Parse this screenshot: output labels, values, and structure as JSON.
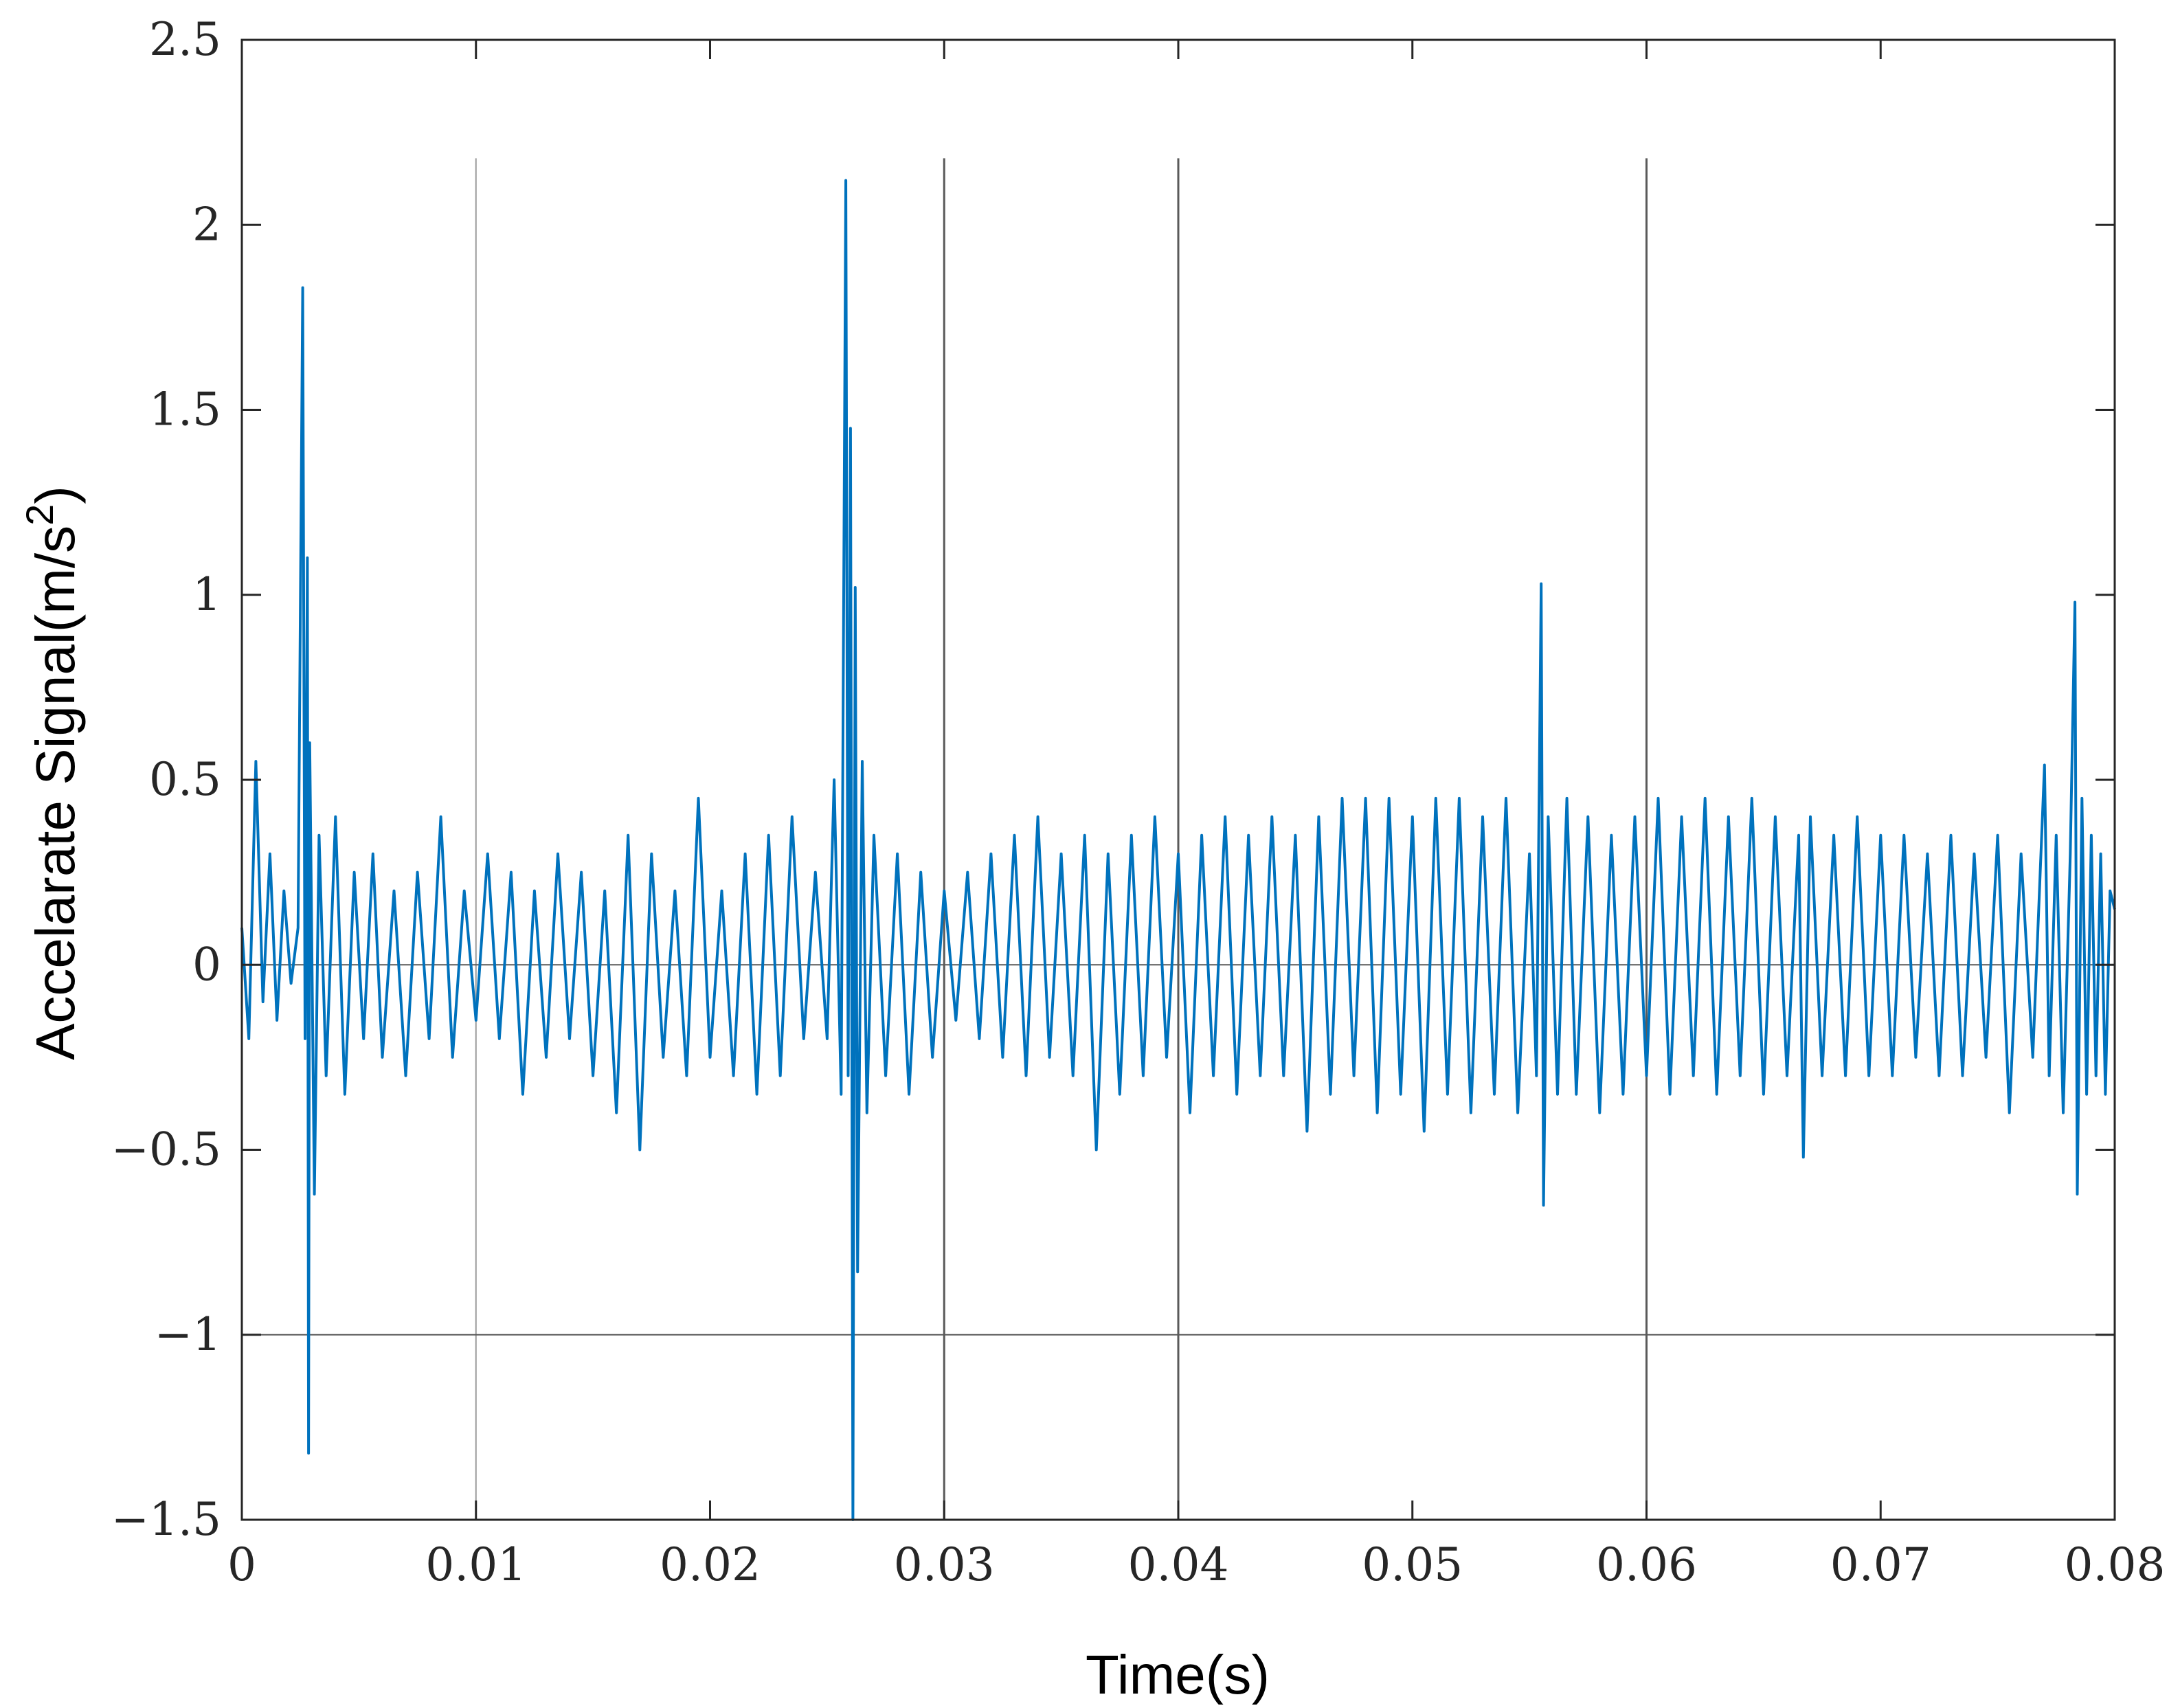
{
  "chart_data": {
    "type": "line",
    "title": "",
    "xlabel": "Time(s)",
    "ylabel": "Accelarate Signal(m/s",
    "ylabel_superscript": "2",
    "ylabel_suffix": ")",
    "xlim": [
      0,
      0.08
    ],
    "ylim": [
      -1.5,
      2.5
    ],
    "x_ticks": [
      0,
      0.01,
      0.02,
      0.03,
      0.04,
      0.05,
      0.06,
      0.07,
      0.08
    ],
    "x_tick_labels": [
      "0",
      "0.01",
      "0.02",
      "0.03",
      "0.04",
      "0.05",
      "0.06",
      "0.07",
      "0.08"
    ],
    "y_ticks": [
      2.5,
      2,
      1.5,
      1,
      0.5,
      0,
      -0.5,
      -1,
      -1.5
    ],
    "y_tick_labels": [
      "2.5",
      "2",
      "1.5",
      "1",
      "0.5",
      "0",
      "−0.5",
      "−1",
      "−1.5"
    ],
    "reference_lines": {
      "vertical_x": [
        0.01,
        0.03,
        0.04,
        0.06
      ],
      "vertical_top_y": 2.18,
      "horizontal_y": [
        0,
        -1
      ]
    },
    "series_color": "#0072BD",
    "grid": false,
    "series": [
      {
        "values_note": "",
        "points": [
          [
            0.0,
            0.1
          ],
          [
            0.0003,
            -0.2
          ],
          [
            0.0006,
            0.55
          ],
          [
            0.0009,
            -0.1
          ],
          [
            0.0012,
            0.3
          ],
          [
            0.0015,
            -0.15
          ],
          [
            0.0018,
            0.2
          ],
          [
            0.0021,
            -0.05
          ],
          [
            0.0024,
            0.1
          ],
          [
            0.0026,
            1.83
          ],
          [
            0.0027,
            -0.2
          ],
          [
            0.0028,
            1.1
          ],
          [
            0.00285,
            -1.32
          ],
          [
            0.0029,
            0.6
          ],
          [
            0.0031,
            -0.62
          ],
          [
            0.0033,
            0.35
          ],
          [
            0.0036,
            -0.3
          ],
          [
            0.004,
            0.4
          ],
          [
            0.0044,
            -0.35
          ],
          [
            0.0048,
            0.25
          ],
          [
            0.0052,
            -0.2
          ],
          [
            0.0056,
            0.3
          ],
          [
            0.006,
            -0.25
          ],
          [
            0.0065,
            0.2
          ],
          [
            0.007,
            -0.3
          ],
          [
            0.0075,
            0.25
          ],
          [
            0.008,
            -0.2
          ],
          [
            0.0085,
            0.4
          ],
          [
            0.009,
            -0.25
          ],
          [
            0.0095,
            0.2
          ],
          [
            0.01,
            -0.15
          ],
          [
            0.0105,
            0.3
          ],
          [
            0.011,
            -0.2
          ],
          [
            0.0115,
            0.25
          ],
          [
            0.012,
            -0.35
          ],
          [
            0.0125,
            0.2
          ],
          [
            0.013,
            -0.25
          ],
          [
            0.0135,
            0.3
          ],
          [
            0.014,
            -0.2
          ],
          [
            0.0145,
            0.25
          ],
          [
            0.015,
            -0.3
          ],
          [
            0.0155,
            0.2
          ],
          [
            0.016,
            -0.4
          ],
          [
            0.0165,
            0.35
          ],
          [
            0.017,
            -0.5
          ],
          [
            0.0175,
            0.3
          ],
          [
            0.018,
            -0.25
          ],
          [
            0.0185,
            0.2
          ],
          [
            0.019,
            -0.3
          ],
          [
            0.0195,
            0.45
          ],
          [
            0.02,
            -0.25
          ],
          [
            0.0205,
            0.2
          ],
          [
            0.021,
            -0.3
          ],
          [
            0.0215,
            0.3
          ],
          [
            0.022,
            -0.35
          ],
          [
            0.0225,
            0.35
          ],
          [
            0.023,
            -0.3
          ],
          [
            0.0235,
            0.4
          ],
          [
            0.024,
            -0.2
          ],
          [
            0.0245,
            0.25
          ],
          [
            0.025,
            -0.2
          ],
          [
            0.0253,
            0.5
          ],
          [
            0.0256,
            -0.35
          ],
          [
            0.0258,
            2.12
          ],
          [
            0.0259,
            -0.3
          ],
          [
            0.026,
            1.45
          ],
          [
            0.0261,
            -1.5
          ],
          [
            0.0262,
            1.02
          ],
          [
            0.0263,
            -0.83
          ],
          [
            0.0265,
            0.55
          ],
          [
            0.0267,
            -0.4
          ],
          [
            0.027,
            0.35
          ],
          [
            0.0275,
            -0.3
          ],
          [
            0.028,
            0.3
          ],
          [
            0.0285,
            -0.35
          ],
          [
            0.029,
            0.25
          ],
          [
            0.0295,
            -0.25
          ],
          [
            0.03,
            0.2
          ],
          [
            0.0305,
            -0.15
          ],
          [
            0.031,
            0.25
          ],
          [
            0.0315,
            -0.2
          ],
          [
            0.032,
            0.3
          ],
          [
            0.0325,
            -0.25
          ],
          [
            0.033,
            0.35
          ],
          [
            0.0335,
            -0.3
          ],
          [
            0.034,
            0.4
          ],
          [
            0.0345,
            -0.25
          ],
          [
            0.035,
            0.3
          ],
          [
            0.0355,
            -0.3
          ],
          [
            0.036,
            0.35
          ],
          [
            0.0365,
            -0.5
          ],
          [
            0.037,
            0.3
          ],
          [
            0.0375,
            -0.35
          ],
          [
            0.038,
            0.35
          ],
          [
            0.0385,
            -0.3
          ],
          [
            0.039,
            0.4
          ],
          [
            0.0395,
            -0.25
          ],
          [
            0.04,
            0.3
          ],
          [
            0.0405,
            -0.4
          ],
          [
            0.041,
            0.35
          ],
          [
            0.0415,
            -0.3
          ],
          [
            0.042,
            0.4
          ],
          [
            0.0425,
            -0.35
          ],
          [
            0.043,
            0.35
          ],
          [
            0.0435,
            -0.3
          ],
          [
            0.044,
            0.4
          ],
          [
            0.0445,
            -0.3
          ],
          [
            0.045,
            0.35
          ],
          [
            0.0455,
            -0.45
          ],
          [
            0.046,
            0.4
          ],
          [
            0.0465,
            -0.35
          ],
          [
            0.047,
            0.45
          ],
          [
            0.0475,
            -0.3
          ],
          [
            0.048,
            0.45
          ],
          [
            0.0485,
            -0.4
          ],
          [
            0.049,
            0.45
          ],
          [
            0.0495,
            -0.35
          ],
          [
            0.05,
            0.4
          ],
          [
            0.0505,
            -0.45
          ],
          [
            0.051,
            0.45
          ],
          [
            0.0515,
            -0.35
          ],
          [
            0.052,
            0.45
          ],
          [
            0.0525,
            -0.4
          ],
          [
            0.053,
            0.4
          ],
          [
            0.0535,
            -0.35
          ],
          [
            0.054,
            0.45
          ],
          [
            0.0545,
            -0.4
          ],
          [
            0.055,
            0.3
          ],
          [
            0.0553,
            -0.3
          ],
          [
            0.0555,
            1.03
          ],
          [
            0.0556,
            -0.65
          ],
          [
            0.0558,
            0.4
          ],
          [
            0.0562,
            -0.35
          ],
          [
            0.0566,
            0.45
          ],
          [
            0.057,
            -0.35
          ],
          [
            0.0575,
            0.4
          ],
          [
            0.058,
            -0.4
          ],
          [
            0.0585,
            0.35
          ],
          [
            0.059,
            -0.35
          ],
          [
            0.0595,
            0.4
          ],
          [
            0.06,
            -0.3
          ],
          [
            0.0605,
            0.45
          ],
          [
            0.061,
            -0.35
          ],
          [
            0.0615,
            0.4
          ],
          [
            0.062,
            -0.3
          ],
          [
            0.0625,
            0.45
          ],
          [
            0.063,
            -0.35
          ],
          [
            0.0635,
            0.4
          ],
          [
            0.064,
            -0.3
          ],
          [
            0.0645,
            0.45
          ],
          [
            0.065,
            -0.35
          ],
          [
            0.0655,
            0.4
          ],
          [
            0.066,
            -0.3
          ],
          [
            0.0665,
            0.35
          ],
          [
            0.0667,
            -0.52
          ],
          [
            0.067,
            0.4
          ],
          [
            0.0675,
            -0.3
          ],
          [
            0.068,
            0.35
          ],
          [
            0.0685,
            -0.3
          ],
          [
            0.069,
            0.4
          ],
          [
            0.0695,
            -0.3
          ],
          [
            0.07,
            0.35
          ],
          [
            0.0705,
            -0.3
          ],
          [
            0.071,
            0.35
          ],
          [
            0.0715,
            -0.25
          ],
          [
            0.072,
            0.3
          ],
          [
            0.0725,
            -0.3
          ],
          [
            0.073,
            0.35
          ],
          [
            0.0735,
            -0.3
          ],
          [
            0.074,
            0.3
          ],
          [
            0.0745,
            -0.25
          ],
          [
            0.075,
            0.35
          ],
          [
            0.0755,
            -0.4
          ],
          [
            0.076,
            0.3
          ],
          [
            0.0765,
            -0.25
          ],
          [
            0.077,
            0.54
          ],
          [
            0.0772,
            -0.3
          ],
          [
            0.0775,
            0.35
          ],
          [
            0.0778,
            -0.4
          ],
          [
            0.0781,
            0.3
          ],
          [
            0.0783,
            0.98
          ],
          [
            0.0784,
            -0.62
          ],
          [
            0.0786,
            0.45
          ],
          [
            0.0788,
            -0.35
          ],
          [
            0.079,
            0.35
          ],
          [
            0.0792,
            -0.3
          ],
          [
            0.0794,
            0.3
          ],
          [
            0.0796,
            -0.35
          ],
          [
            0.0798,
            0.2
          ],
          [
            0.08,
            0.15
          ]
        ]
      }
    ]
  }
}
